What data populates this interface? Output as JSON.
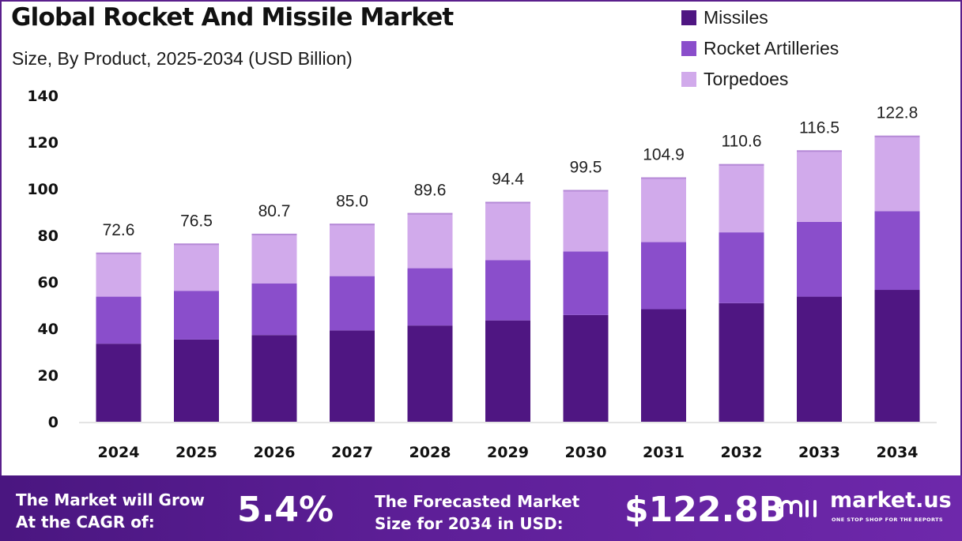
{
  "header": {
    "title": "Global Rocket And Missile Market",
    "subtitle": "Size, By Product, 2025-2034 (USD Billion)"
  },
  "legend": {
    "items": [
      {
        "label": "Missiles",
        "color": "#4f1682"
      },
      {
        "label": "Rocket Artilleries",
        "color": "#8a4ecb"
      },
      {
        "label": "Torpedoes",
        "color": "#d1aaeb"
      }
    ]
  },
  "chart_data": {
    "type": "bar",
    "stacked": true,
    "title": "Global Rocket And Missile Market",
    "subtitle": "Size, By Product, 2025-2034 (USD Billion)",
    "categories": [
      "2024",
      "2025",
      "2026",
      "2027",
      "2028",
      "2029",
      "2030",
      "2031",
      "2032",
      "2033",
      "2034"
    ],
    "series": [
      {
        "name": "Missiles",
        "color": "#4f1682",
        "values": [
          33.5,
          35.3,
          37.2,
          39.2,
          41.3,
          43.5,
          45.8,
          48.3,
          50.9,
          53.7,
          56.6
        ]
      },
      {
        "name": "Rocket Artilleries",
        "color": "#8a4ecb",
        "values": [
          20.2,
          20.9,
          22.2,
          23.3,
          24.6,
          25.9,
          27.3,
          28.8,
          30.4,
          32.1,
          33.8
        ]
      },
      {
        "name": "Torpedoes",
        "color": "#d1aaeb",
        "values": [
          18.9,
          20.3,
          21.3,
          22.5,
          23.7,
          25.0,
          26.4,
          27.8,
          29.3,
          30.7,
          32.4
        ]
      }
    ],
    "totals": [
      "72.6",
      "76.5",
      "80.7",
      "85.0",
      "89.6",
      "94.4",
      "99.5",
      "104.9",
      "110.6",
      "116.5",
      "122.8"
    ],
    "ylim": [
      0,
      140
    ],
    "yticks": [
      0,
      20,
      40,
      60,
      80,
      100,
      120,
      140
    ],
    "grid": false,
    "legend_position": "top-right"
  },
  "footer": {
    "cagr_line1": "The Market will Grow",
    "cagr_line2": "At the CAGR of:",
    "cagr_value": "5.4%",
    "forecast_line1": "The Forecasted Market",
    "forecast_line2": "Size for 2034 in USD:",
    "forecast_value": "$122.8B",
    "brand_name": "market.us",
    "brand_tagline": "ONE STOP SHOP FOR THE REPORTS"
  }
}
